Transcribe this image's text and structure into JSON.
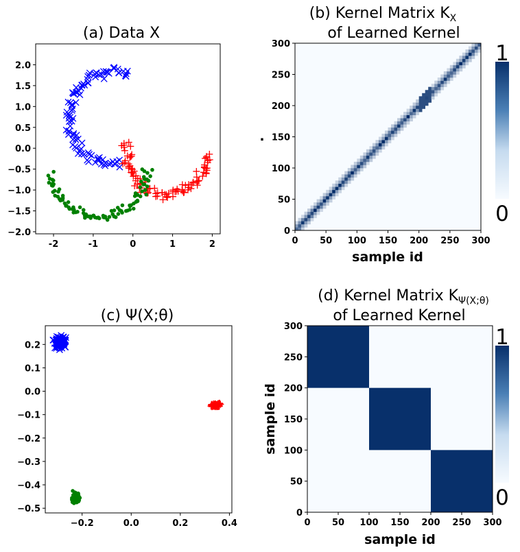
{
  "chart_data": [
    {
      "panel": "a",
      "type": "scatter",
      "title": "(a) Data X",
      "xlim": [
        -2.45,
        2.2
      ],
      "ylim": [
        -2.05,
        2.5
      ],
      "xticks": [
        -2,
        -1,
        0,
        1,
        2
      ],
      "yticks": [
        -2.0,
        -1.5,
        -1.0,
        -0.5,
        0.0,
        0.5,
        1.0,
        1.5,
        2.0
      ],
      "series": [
        {
          "marker": "x",
          "color": "#0000ff",
          "arc": {
            "cx": -0.5,
            "cy": 0.75,
            "r": 1.1,
            "from_deg": 70,
            "to_deg": 280
          },
          "count": 100
        },
        {
          "marker": "+",
          "color": "#ff0000",
          "arc": {
            "cx": 0.85,
            "cy": -0.05,
            "r": 1.05,
            "from_deg": 170,
            "to_deg": 355
          },
          "count": 100
        },
        {
          "marker": "o",
          "color": "#008000",
          "arc": {
            "cx": -0.85,
            "cy": -0.4,
            "r": 1.25,
            "from_deg": 190,
            "to_deg": 355
          },
          "count": 100
        }
      ]
    },
    {
      "panel": "b",
      "type": "heatmap",
      "title": "(b) Kernel Matrix K",
      "title_sub": "X",
      "title_line2": "of Learned Kernel",
      "xlabel": "sample id",
      "ylabel": ".",
      "xlim": [
        0,
        300
      ],
      "ylim": [
        0,
        300
      ],
      "ticks": [
        0,
        50,
        100,
        150,
        200,
        250,
        300
      ],
      "colorbar": {
        "min_label": "0",
        "max_label": "1",
        "colors": [
          "#f7fbff",
          "#08306b"
        ]
      },
      "pattern": "narrow band along diagonal"
    },
    {
      "panel": "c",
      "type": "scatter",
      "title": "(c) Ψ(X;θ)",
      "xlim": [
        -0.35,
        0.41
      ],
      "ylim": [
        -0.52,
        0.28
      ],
      "xticks": [
        -0.2,
        0.0,
        0.2,
        0.4
      ],
      "yticks": [
        -0.5,
        -0.4,
        -0.3,
        -0.2,
        -0.1,
        0.0,
        0.1,
        0.2
      ],
      "series": [
        {
          "marker": "x",
          "color": "#0000ff",
          "center": [
            -0.29,
            0.21
          ],
          "spread": [
            0.025,
            0.03
          ],
          "count": 100
        },
        {
          "marker": "+",
          "color": "#ff0000",
          "center": [
            0.345,
            -0.06
          ],
          "spread": [
            0.018,
            0.008
          ],
          "count": 100
        },
        {
          "marker": "o",
          "color": "#008000",
          "center": [
            -0.225,
            -0.455
          ],
          "spread": [
            0.015,
            0.025
          ],
          "count": 100
        }
      ]
    },
    {
      "panel": "d",
      "type": "heatmap",
      "title": "(d) Kernel Matrix K",
      "title_sub": "Ψ(X;θ)",
      "title_line2": "of Learned Kernel",
      "xlabel": "sample id",
      "ylabel": "sample id",
      "xlim": [
        0,
        300
      ],
      "ylim": [
        0,
        300
      ],
      "ticks": [
        0,
        50,
        100,
        150,
        200,
        250,
        300
      ],
      "colorbar": {
        "min_label": "0",
        "max_label": "1",
        "colors": [
          "#f7fbff",
          "#08306b"
        ]
      },
      "blocks": [
        [
          0,
          100
        ],
        [
          100,
          200
        ],
        [
          200,
          300
        ]
      ]
    }
  ]
}
